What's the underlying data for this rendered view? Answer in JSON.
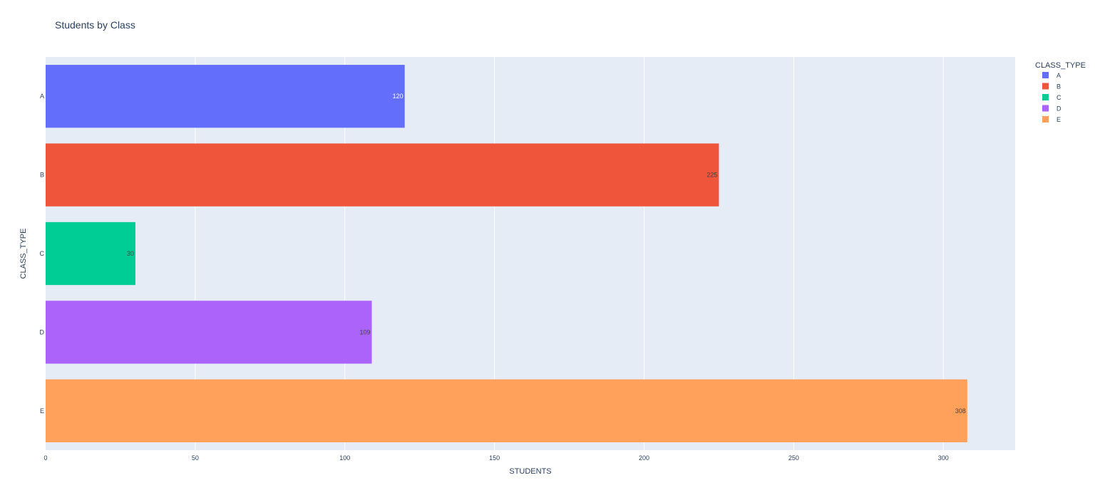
{
  "chart_data": {
    "type": "bar",
    "orientation": "horizontal",
    "title": "Students by Class",
    "xlabel": "STUDENTS",
    "ylabel": "CLASS_TYPE",
    "categories": [
      "A",
      "B",
      "C",
      "D",
      "E"
    ],
    "values": [
      120,
      225,
      30,
      109,
      308
    ],
    "data_labels": [
      "120",
      "225",
      "30",
      "109",
      "308"
    ],
    "colors": [
      "#636efa",
      "#ef553b",
      "#00cc96",
      "#ab63fa",
      "#ffa15a"
    ],
    "data_label_colors": [
      "#ffffff",
      "#444444",
      "#444444",
      "#444444",
      "#444444"
    ],
    "xlim": [
      0,
      324
    ],
    "xticks": [
      0,
      50,
      100,
      150,
      200,
      250,
      300
    ],
    "grid": true,
    "plot_background": "#e5ecf6",
    "gridline_color": "#ffffff",
    "text_color": "#2a3f5f",
    "legend": {
      "title": "CLASS_TYPE",
      "position": "top-right",
      "entries": [
        "A",
        "B",
        "C",
        "D",
        "E"
      ]
    }
  }
}
